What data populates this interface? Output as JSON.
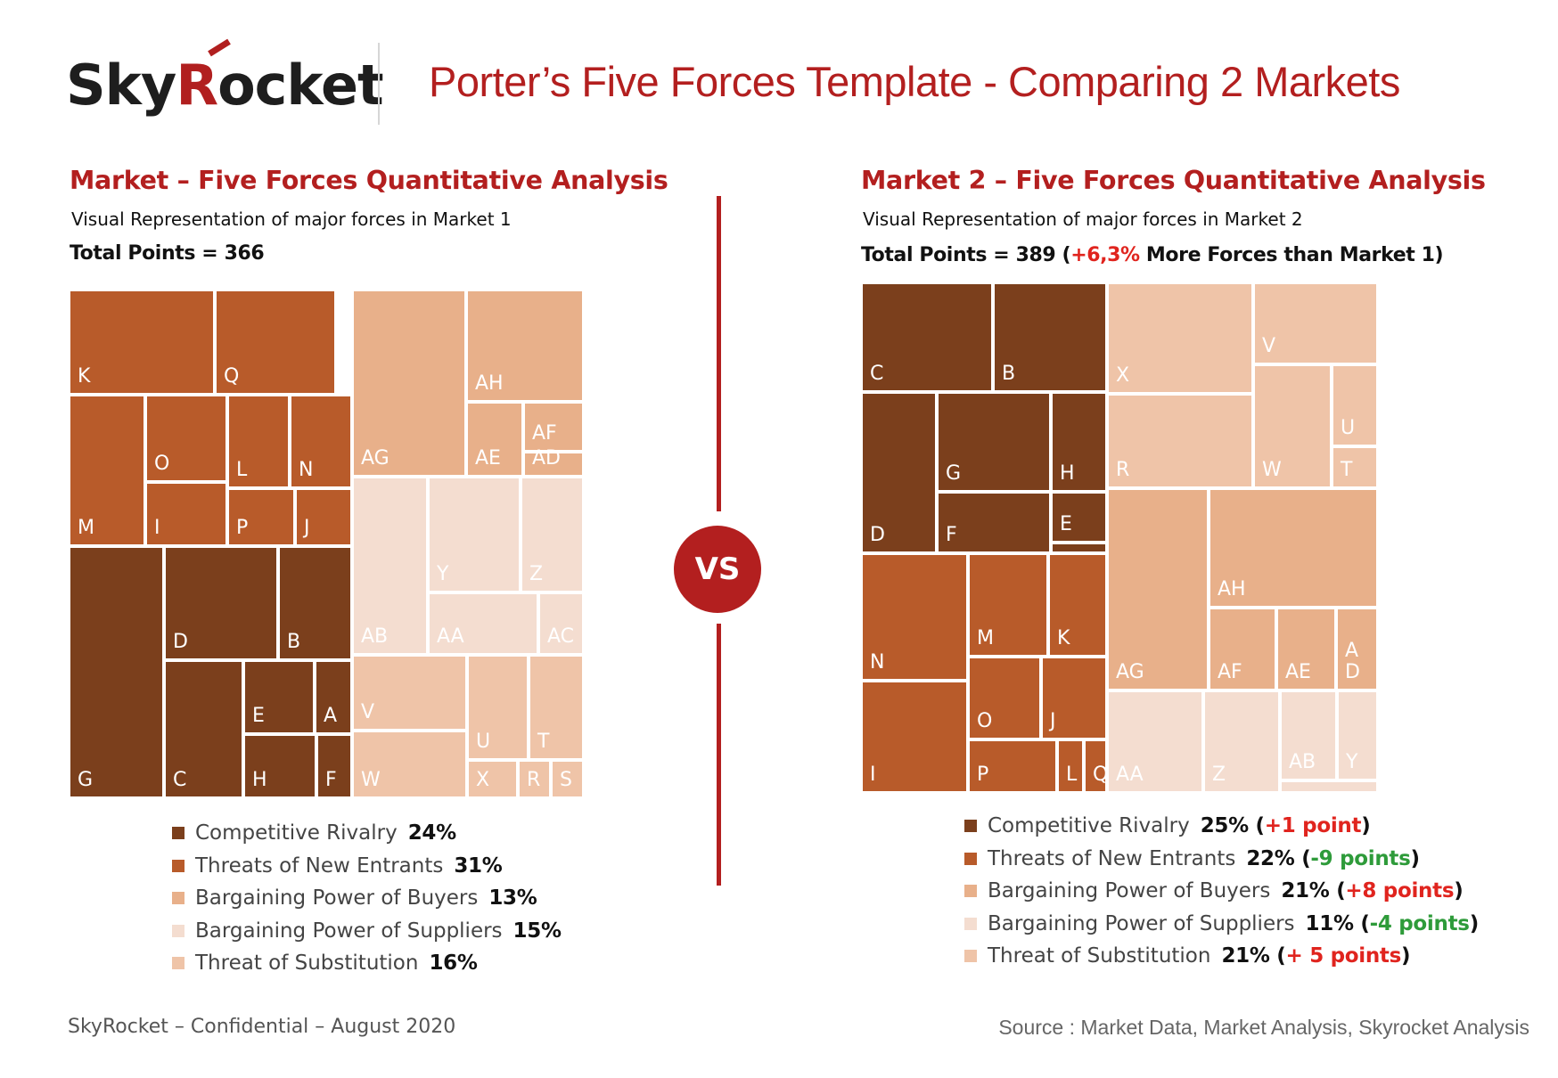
{
  "header": {
    "logo_text": "SkyRocket",
    "logo_part1": "Sky",
    "logo_part2": "R",
    "logo_part3": "ocket",
    "title": "Porter’s Five Forces Template - Comparing 2 Markets"
  },
  "colors": {
    "competitive_rivalry": "#7b3f1c",
    "threats_new_entrants": "#b85b2a",
    "bargaining_buyers": "#e8b08a",
    "bargaining_suppliers": "#f4ddd0",
    "threat_substitution": "#efc4a8",
    "accent_red": "#b31f1f"
  },
  "vs_label": "VS",
  "market1": {
    "title": "Market – Five Forces Quantitative Analysis",
    "subtitle": "Visual Representation of major forces in Market 1",
    "total_label": "Total Points = 366",
    "legend": [
      {
        "label": "Competitive Rivalry",
        "pct": "24%",
        "change": "",
        "change_color": ""
      },
      {
        "label": "Threats of New Entrants",
        "pct": "31%",
        "change": "",
        "change_color": ""
      },
      {
        "label": "Bargaining Power of Buyers",
        "pct": "13%",
        "change": "",
        "change_color": ""
      },
      {
        "label": "Bargaining Power of Suppliers",
        "pct": "15%",
        "change": "",
        "change_color": ""
      },
      {
        "label": "Threat of Substitution",
        "pct": "16%",
        "change": "",
        "change_color": ""
      }
    ]
  },
  "market2": {
    "title": "Market 2 – Five Forces Quantitative Analysis",
    "subtitle": "Visual Representation of major forces in Market 2",
    "total_prefix": "Total Points = 389 (",
    "total_highlight": "+6,3%",
    "total_suffix": " More Forces than Market 1)",
    "legend": [
      {
        "label": "Competitive Rivalry",
        "pct": "25% (",
        "change": "+1 point",
        "change_color": "red",
        "close": ")"
      },
      {
        "label": "Threats of New Entrants",
        "pct": "22% (",
        "change": "-9 points",
        "change_color": "green",
        "close": ")"
      },
      {
        "label": "Bargaining Power of Buyers",
        "pct": "21% (",
        "change": "+8 points",
        "change_color": "red",
        "close": ")"
      },
      {
        "label": "Bargaining Power of Suppliers",
        "pct": "11% (",
        "change": "-4 points",
        "change_color": "green",
        "close": ")"
      },
      {
        "label": "Threat of Substitution",
        "pct": "21% (",
        "change": "+ 5 points",
        "change_color": "red",
        "close": ")"
      }
    ]
  },
  "chart_data": [
    {
      "type": "treemap",
      "title": "Market – Five Forces Quantitative Analysis",
      "total_points": 366,
      "groups": [
        {
          "name": "Competitive Rivalry",
          "share_pct": 24,
          "items": [
            "G",
            "D",
            "B",
            "C",
            "E",
            "A",
            "H",
            "F"
          ]
        },
        {
          "name": "Threats of New Entrants",
          "share_pct": 31,
          "items": [
            "K",
            "Q",
            "M",
            "O",
            "L",
            "N",
            "I",
            "P",
            "J"
          ]
        },
        {
          "name": "Bargaining Power of Buyers",
          "share_pct": 13,
          "items": [
            "AG",
            "AH",
            "AE",
            "AF",
            "AD"
          ]
        },
        {
          "name": "Bargaining Power of Suppliers",
          "share_pct": 15,
          "items": [
            "AB",
            "Y",
            "Z",
            "AA",
            "AC"
          ]
        },
        {
          "name": "Threat of Substitution",
          "share_pct": 16,
          "items": [
            "V",
            "W",
            "U",
            "T",
            "X",
            "R",
            "S"
          ]
        }
      ]
    },
    {
      "type": "treemap",
      "title": "Market 2 – Five Forces Quantitative Analysis",
      "total_points": 389,
      "groups": [
        {
          "name": "Competitive Rivalry",
          "share_pct": 25,
          "change": "+1 point",
          "items": [
            "C",
            "B",
            "D",
            "G",
            "H",
            "F",
            "E"
          ]
        },
        {
          "name": "Threats of New Entrants",
          "share_pct": 22,
          "change": "-9 points",
          "items": [
            "N",
            "M",
            "K",
            "I",
            "O",
            "J",
            "P",
            "L",
            "Q"
          ]
        },
        {
          "name": "Bargaining Power of Buyers",
          "share_pct": 21,
          "change": "+8 points",
          "items": [
            "AG",
            "AH",
            "AF",
            "AE",
            "AD"
          ]
        },
        {
          "name": "Bargaining Power of Suppliers",
          "share_pct": 11,
          "change": "-4 points",
          "items": [
            "AA",
            "Z",
            "AB",
            "Y"
          ]
        },
        {
          "name": "Threat of Substitution",
          "share_pct": 21,
          "change": "+ 5 points",
          "items": [
            "X",
            "R",
            "V",
            "W",
            "U",
            "T"
          ]
        }
      ]
    }
  ],
  "footer": {
    "left": "SkyRocket – Confidential – August 2020",
    "right": "Source : Market Data, Market Analysis, Skyrocket Analysis"
  }
}
